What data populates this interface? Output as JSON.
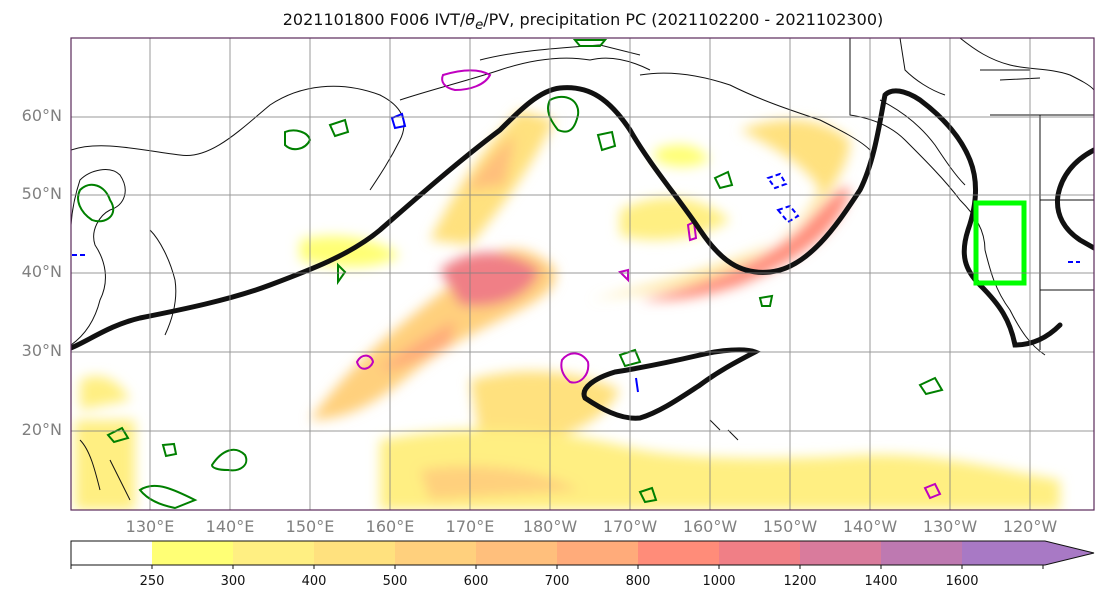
{
  "title": {
    "prefix": "2021101800 F006 IVT/",
    "theta": "θ",
    "theta_sub": "e",
    "suffix": "/PV, precipitation PC (2021102200 - 2021102300)"
  },
  "lat_labels": [
    "60°N",
    "50°N",
    "40°N",
    "30°N",
    "20°N"
  ],
  "lon_labels": [
    "130°E",
    "140°E",
    "150°E",
    "160°E",
    "170°E",
    "180°W",
    "170°W",
    "160°W",
    "150°W",
    "140°W",
    "130°W",
    "120°W"
  ],
  "colorbar": {
    "ticks": [
      "250",
      "300",
      "400",
      "500",
      "600",
      "700",
      "800",
      "1000",
      "1200",
      "1400",
      "1600"
    ],
    "colors": [
      "#ffffff",
      "#ffff75",
      "#ffef82",
      "#ffe17e",
      "#ffd07d",
      "#ffbf7c",
      "#ffab7a",
      "#ff8c79",
      "#f07f86",
      "#d97b9c",
      "#be79b1",
      "#a879c5"
    ]
  },
  "colors": {
    "ivt_contour": "#111111",
    "theta_e_contour": "#008000",
    "pv_contour_blue": "#0000ff",
    "pv_contour_magenta": "#c000c0",
    "highlight_box": "#00ff00"
  }
}
